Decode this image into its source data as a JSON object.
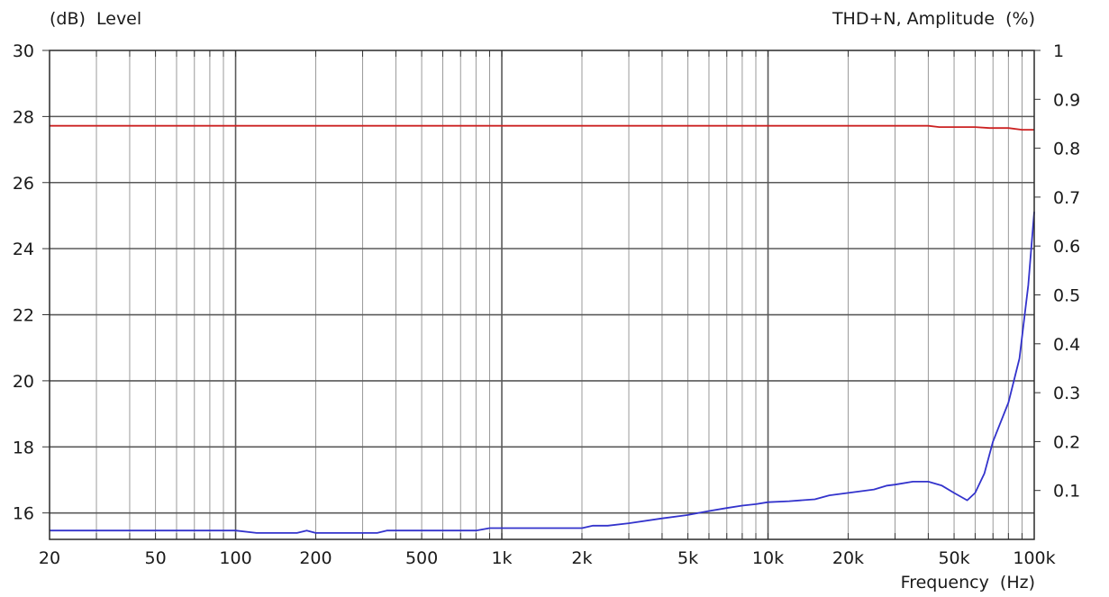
{
  "chart_data": {
    "type": "line",
    "left_axis_label": "(dB)  Level",
    "right_axis_label": "THD+N, Amplitude  (%)",
    "x_axis_label": "Frequency  (Hz)",
    "x_scale": "log",
    "xlim": [
      20,
      100000
    ],
    "ylim_left": [
      15.2,
      30
    ],
    "ylim_right": [
      0,
      1
    ],
    "grid": true,
    "x_ticks": [
      {
        "value": 20,
        "label": "20"
      },
      {
        "value": 50,
        "label": "50"
      },
      {
        "value": 100,
        "label": "100"
      },
      {
        "value": 200,
        "label": "200"
      },
      {
        "value": 500,
        "label": "500"
      },
      {
        "value": 1000,
        "label": "1k"
      },
      {
        "value": 2000,
        "label": "2k"
      },
      {
        "value": 5000,
        "label": "5k"
      },
      {
        "value": 10000,
        "label": "10k"
      },
      {
        "value": 20000,
        "label": "20k"
      },
      {
        "value": 50000,
        "label": "50k"
      },
      {
        "value": 100000,
        "label": "100k"
      }
    ],
    "y_left_ticks": [
      "16",
      "18",
      "20",
      "22",
      "24",
      "26",
      "28",
      "30"
    ],
    "y_right_ticks": [
      "0.1",
      "0.2",
      "0.3",
      "0.4",
      "0.5",
      "0.6",
      "0.7",
      "0.8",
      "0.9",
      "1"
    ],
    "series": [
      {
        "axis": "left",
        "color": "#cc2222",
        "points": [
          [
            20,
            27.72
          ],
          [
            1000,
            27.72
          ],
          [
            10000,
            27.72
          ],
          [
            40000,
            27.72
          ],
          [
            44000,
            27.68
          ],
          [
            60000,
            27.68
          ],
          [
            68000,
            27.65
          ],
          [
            80000,
            27.65
          ],
          [
            90000,
            27.6
          ],
          [
            100000,
            27.6
          ]
        ]
      },
      {
        "axis": "right",
        "color": "#3333cc",
        "points": [
          [
            20,
            0.018
          ],
          [
            100,
            0.018
          ],
          [
            120,
            0.013
          ],
          [
            150,
            0.013
          ],
          [
            170,
            0.013
          ],
          [
            185,
            0.018
          ],
          [
            200,
            0.013
          ],
          [
            250,
            0.013
          ],
          [
            340,
            0.013
          ],
          [
            370,
            0.018
          ],
          [
            500,
            0.018
          ],
          [
            800,
            0.018
          ],
          [
            900,
            0.023
          ],
          [
            1000,
            0.023
          ],
          [
            1500,
            0.023
          ],
          [
            2000,
            0.023
          ],
          [
            2200,
            0.028
          ],
          [
            2500,
            0.028
          ],
          [
            3000,
            0.033
          ],
          [
            4000,
            0.043
          ],
          [
            5000,
            0.05
          ],
          [
            6000,
            0.058
          ],
          [
            7000,
            0.064
          ],
          [
            8000,
            0.069
          ],
          [
            9000,
            0.072
          ],
          [
            10000,
            0.076
          ],
          [
            12000,
            0.078
          ],
          [
            15000,
            0.082
          ],
          [
            17000,
            0.09
          ],
          [
            20000,
            0.095
          ],
          [
            25000,
            0.102
          ],
          [
            28000,
            0.11
          ],
          [
            30000,
            0.112
          ],
          [
            35000,
            0.118
          ],
          [
            40000,
            0.118
          ],
          [
            45000,
            0.11
          ],
          [
            50000,
            0.095
          ],
          [
            56000,
            0.08
          ],
          [
            60000,
            0.095
          ],
          [
            65000,
            0.135
          ],
          [
            70000,
            0.2
          ],
          [
            80000,
            0.28
          ],
          [
            88000,
            0.37
          ],
          [
            95000,
            0.52
          ],
          [
            100000,
            0.67
          ]
        ]
      }
    ]
  }
}
